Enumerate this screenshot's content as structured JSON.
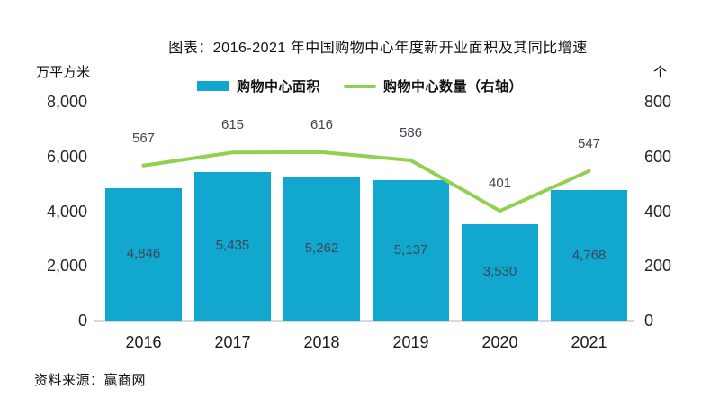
{
  "title": "图表：2016-2021 年中国购物中心年度新开业面积及其同比增速",
  "source": "资料来源：赢商网",
  "colors": {
    "bar": "#12a7cf",
    "line": "#92d050",
    "value_label": "#3f4654",
    "axis_line": "#d9d9d9"
  },
  "legend": {
    "items": [
      {
        "label": "购物中心面积",
        "swatch": "bar",
        "color": "#12a7cf"
      },
      {
        "label": "购物中心数量（右轴）",
        "swatch": "line",
        "color": "#92d050"
      }
    ]
  },
  "chart_data": {
    "type": "bar",
    "title": "图表：2016-2021 年中国购物中心年度新开业面积及其同比增速",
    "categories": [
      "2016",
      "2017",
      "2018",
      "2019",
      "2020",
      "2021"
    ],
    "series": [
      {
        "name": "购物中心面积",
        "type": "bar",
        "axis": "left",
        "color": "#12a7cf",
        "values": [
          4846,
          5435,
          5262,
          5137,
          3530,
          4768
        ],
        "labels": [
          "4,846",
          "5,435",
          "5,262",
          "5,137",
          "3,530",
          "4,768"
        ]
      },
      {
        "name": "购物中心数量（右轴）",
        "type": "line",
        "axis": "right",
        "color": "#92d050",
        "values": [
          567,
          615,
          616,
          586,
          401,
          547
        ],
        "labels": [
          "567",
          "615",
          "616",
          "586",
          "401",
          "547"
        ]
      }
    ],
    "left_axis": {
      "unit": "万平方米",
      "min": 0,
      "max": 8000,
      "ticks": [
        "8,000",
        "6,000",
        "4,000",
        "2,000",
        "0"
      ]
    },
    "right_axis": {
      "unit": "个",
      "min": 0,
      "max": 800,
      "ticks": [
        "800",
        "600",
        "400",
        "200",
        "0"
      ]
    },
    "grid": false,
    "legend_position": "top"
  }
}
